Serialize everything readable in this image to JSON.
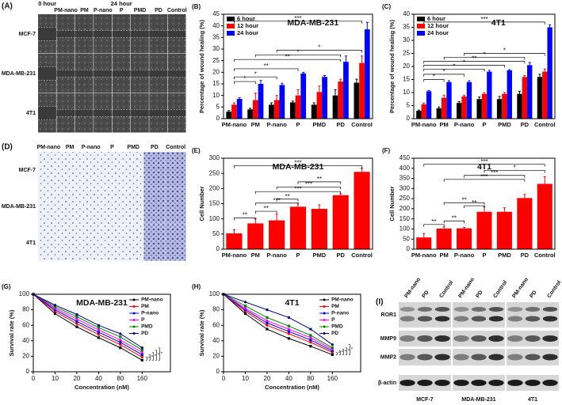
{
  "chart_data": [
    {
      "type": "bar",
      "label": "(B)",
      "title": "MDA-MB-231",
      "y_label": "Percentage of wound healing (%)",
      "legend": "upper left",
      "categories": [
        "PM-nano",
        "PM",
        "P-nano",
        "P",
        "PMD",
        "PD",
        "Control"
      ],
      "series": [
        {
          "name": "6 hour",
          "color": "#000000",
          "values": [
            3,
            4,
            6,
            7,
            6,
            10,
            15.5
          ],
          "errors": [
            0.5,
            0.5,
            0.8,
            0.6,
            0.8,
            2.5,
            1.5
          ]
        },
        {
          "name": "12 hour",
          "color": "#ff0000",
          "values": [
            6,
            8,
            8,
            10,
            11.5,
            16,
            24
          ],
          "errors": [
            0.8,
            3,
            2,
            2.5,
            2.5,
            1,
            3
          ]
        },
        {
          "name": "24 hour",
          "color": "#0000ff",
          "values": [
            8.5,
            15,
            14.5,
            19.5,
            18,
            24.5,
            38.5
          ],
          "errors": [
            0.5,
            1.5,
            0.8,
            0.5,
            0.6,
            2.5,
            3
          ]
        }
      ],
      "ylim": [
        0,
        45
      ],
      "yticks": [
        0,
        5,
        10,
        15,
        20,
        25,
        30,
        35,
        40,
        45
      ],
      "annotations": [
        "***",
        "*",
        "*",
        "**",
        "**",
        "*",
        "*"
      ]
    },
    {
      "type": "bar",
      "label": "(C)",
      "title": "4T1",
      "y_label": "Percentage of wound healing (%)",
      "legend": "upper left",
      "categories": [
        "PM-nano",
        "PM",
        "P-nano",
        "P",
        "PMD",
        "PD",
        "Control"
      ],
      "series": [
        {
          "name": "6 hour",
          "color": "#000000",
          "values": [
            3,
            4,
            6,
            7.5,
            7.5,
            9.5,
            16
          ],
          "errors": [
            0.3,
            0.5,
            0.5,
            0.8,
            1,
            1,
            1
          ]
        },
        {
          "name": "12 hour",
          "color": "#ff0000",
          "values": [
            5.5,
            8,
            8.5,
            9.5,
            9.5,
            16,
            18
          ],
          "errors": [
            0.5,
            1,
            0.5,
            0.5,
            0.5,
            0.5,
            1
          ]
        },
        {
          "name": "24 hour",
          "color": "#0000ff",
          "values": [
            10.5,
            14,
            14,
            18,
            18.5,
            20.5,
            35
          ],
          "errors": [
            0.3,
            0.5,
            0.5,
            0.5,
            0.3,
            1,
            1
          ]
        }
      ],
      "ylim": [
        0,
        40
      ],
      "yticks": [
        0,
        5,
        10,
        15,
        20,
        25,
        30,
        35,
        40
      ],
      "annotations": [
        "***",
        "*",
        "*",
        "**",
        "*",
        "*",
        "*",
        "*"
      ]
    },
    {
      "type": "bar",
      "label": "(E)",
      "title": "MDA-MB-231",
      "y_label": "Cell Number",
      "categories": [
        "PM-nano",
        "PM",
        "P-nano",
        "P",
        "PMD",
        "PD",
        "Control"
      ],
      "values": [
        52,
        85,
        95,
        140,
        133,
        178,
        255
      ],
      "errors": [
        12,
        15,
        20,
        12,
        13,
        5,
        12
      ],
      "color": "#ff0000",
      "ylim": [
        0,
        300
      ],
      "yticks": [
        0,
        50,
        100,
        150,
        200,
        250,
        300
      ],
      "annotations": [
        "***",
        "**",
        "***",
        "***",
        "**",
        "***",
        "**",
        "**"
      ]
    },
    {
      "type": "bar",
      "label": "(F)",
      "title": "4T1",
      "y_label": "Cell Number",
      "categories": [
        "PM-nano",
        "PM",
        "P-nano",
        "P",
        "PMD",
        "PD",
        "Control"
      ],
      "values": [
        58,
        102,
        103,
        185,
        185,
        253,
        323
      ],
      "errors": [
        20,
        8,
        5,
        25,
        20,
        18,
        35
      ],
      "color": "#ff0000",
      "ylim": [
        0,
        450
      ],
      "yticks": [
        0,
        50,
        100,
        150,
        200,
        250,
        300,
        350,
        400,
        450
      ],
      "annotations": [
        "***",
        "*",
        "***",
        "***",
        "**",
        "**",
        "**",
        "**"
      ]
    },
    {
      "type": "line",
      "label": "(G)",
      "title": "MDA-MB-231",
      "y_label": "Survival rate (%)",
      "x_label": "Concentration (nM)",
      "legend": "upper right",
      "categories": [
        "0",
        "10",
        "20",
        "40",
        "80",
        "160"
      ],
      "series": [
        {
          "name": "PM-nano",
          "color": "#000000",
          "values": [
            100,
            75,
            58,
            44,
            31,
            15
          ]
        },
        {
          "name": "PM",
          "color": "#ff0000",
          "values": [
            100,
            78,
            62,
            48,
            35,
            19
          ]
        },
        {
          "name": "P-nano",
          "color": "#0000ff",
          "values": [
            100,
            80,
            65,
            51,
            38,
            22
          ]
        },
        {
          "name": "P",
          "color": "#ff00ff",
          "values": [
            100,
            82,
            68,
            54,
            41,
            25
          ]
        },
        {
          "name": "PMD",
          "color": "#008000",
          "values": [
            100,
            84,
            71,
            57,
            45,
            28
          ]
        },
        {
          "name": "PD",
          "color": "#000080",
          "values": [
            100,
            86,
            74,
            60,
            49,
            31
          ]
        }
      ],
      "ylim": [
        0,
        100
      ],
      "yticks": [
        0,
        20,
        40,
        60,
        80,
        100
      ],
      "annotations": [
        "*",
        "*",
        "*",
        "*",
        "*"
      ]
    },
    {
      "type": "line",
      "label": "(H)",
      "title": "4T1",
      "y_label": "Survival rate (%)",
      "x_label": "Concentration (nM)",
      "legend": "upper right",
      "categories": [
        "0",
        "10",
        "20",
        "40",
        "80",
        "160"
      ],
      "series": [
        {
          "name": "PM-nano",
          "color": "#000000",
          "values": [
            100,
            75,
            55,
            43,
            33,
            22
          ]
        },
        {
          "name": "PM",
          "color": "#ff0000",
          "values": [
            100,
            78,
            60,
            49,
            38,
            25
          ]
        },
        {
          "name": "P-nano",
          "color": "#0000ff",
          "values": [
            100,
            80,
            63,
            52,
            41,
            27
          ]
        },
        {
          "name": "P",
          "color": "#ff00ff",
          "values": [
            100,
            82,
            66,
            55,
            44,
            29
          ]
        },
        {
          "name": "PMD",
          "color": "#008000",
          "values": [
            100,
            85,
            70,
            59,
            47,
            31
          ]
        },
        {
          "name": "PD",
          "color": "#000080",
          "values": [
            100,
            90,
            80,
            70,
            55,
            35
          ]
        }
      ],
      "ylim": [
        0,
        100
      ],
      "yticks": [
        0,
        20,
        40,
        60,
        80,
        100
      ],
      "annotations": [
        "*",
        "*",
        "*",
        "*",
        "*"
      ]
    }
  ],
  "image_panels": [
    {
      "label": "(A)",
      "time_labels": [
        "0 hour",
        "24 hour"
      ],
      "columns": [
        "PM-nano",
        "PM",
        "P-nano",
        "P",
        "PMD",
        "PD",
        "Control"
      ],
      "rows": [
        "MCF-7",
        "MDA-MB-231",
        "4T1"
      ]
    },
    {
      "label": "(D)",
      "columns": [
        "PM-nano",
        "PM",
        "P-nano",
        "P",
        "PMD",
        "PD",
        "Control"
      ],
      "rows": [
        "MCF-7",
        "MDA-MB-231",
        "4T1"
      ]
    },
    {
      "label": "(I)",
      "bands": [
        "ROR1",
        "MMP9",
        "MMP2",
        "β-actin"
      ],
      "groups": [
        {
          "name": "MCF-7",
          "columns": [
            "PM-nano",
            "PD",
            "Control"
          ]
        },
        {
          "name": "MDA-MB-231",
          "columns": [
            "PM-nano",
            "PD",
            "Control"
          ]
        },
        {
          "name": "4T1",
          "columns": [
            "PM-nano",
            "PD",
            "Control"
          ]
        }
      ]
    }
  ]
}
